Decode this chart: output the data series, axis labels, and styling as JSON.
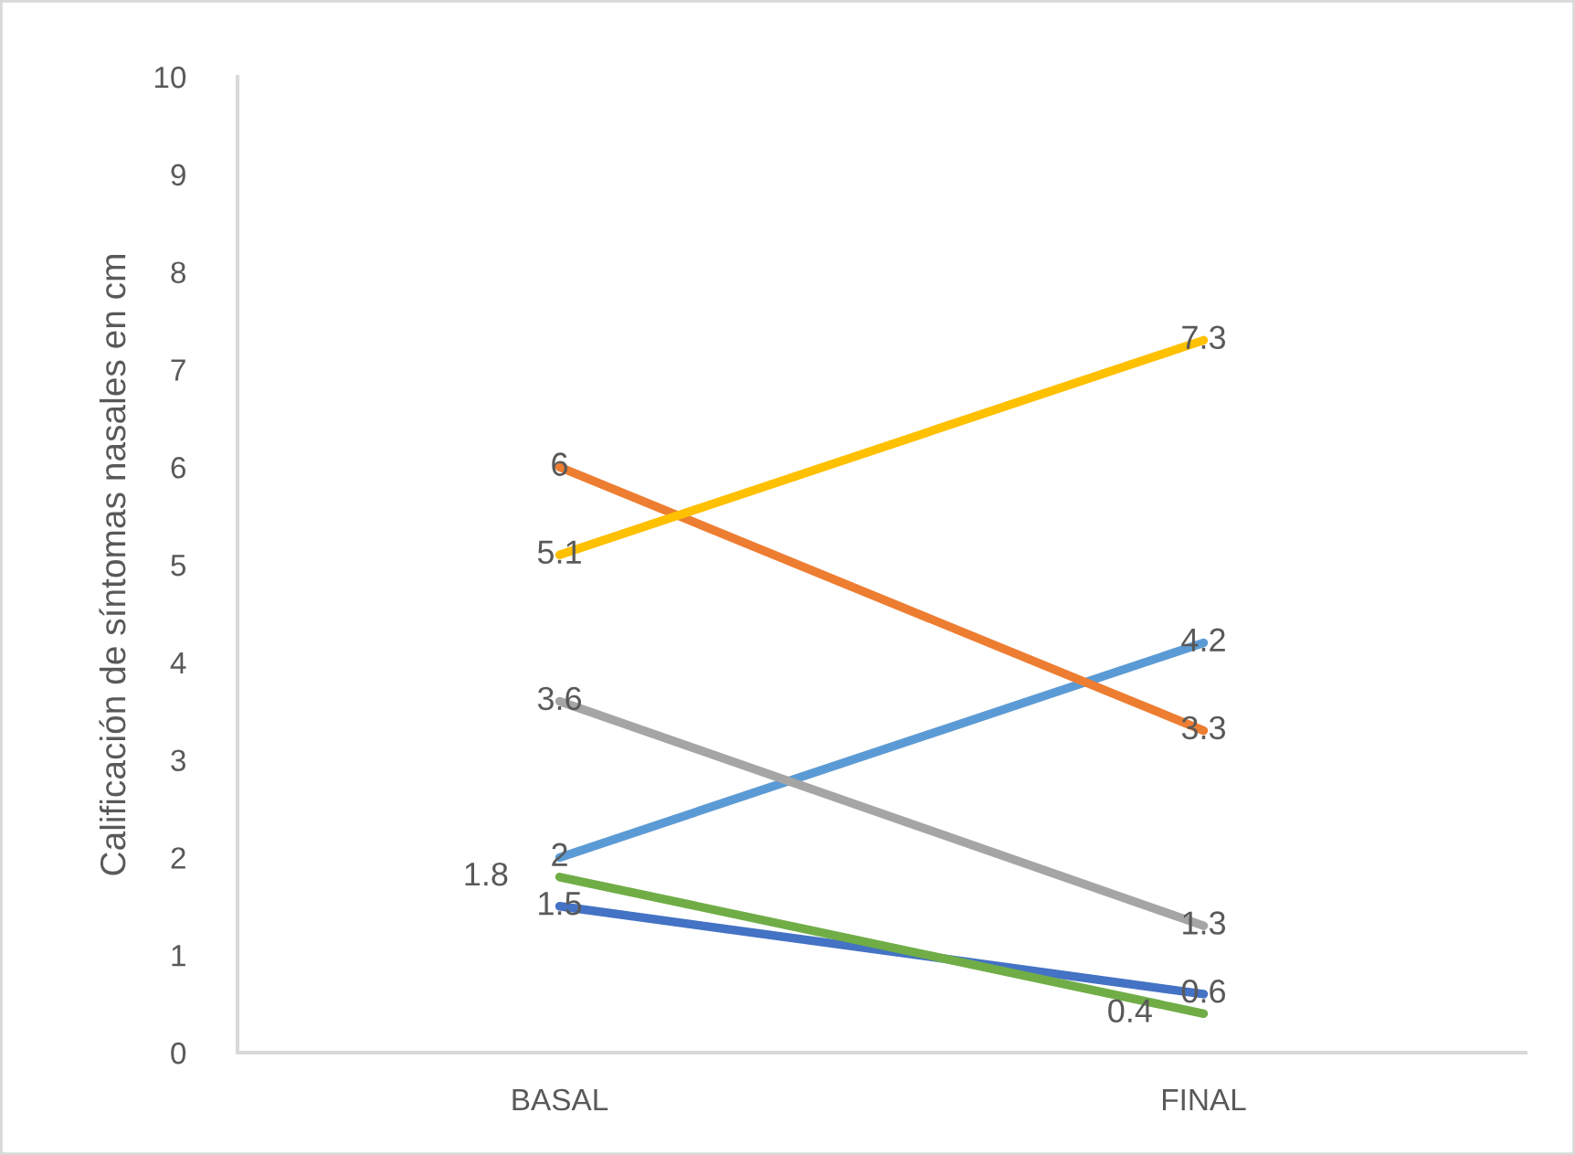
{
  "chart_data": {
    "type": "line",
    "ylabel": "Calificación de síntomas nasales en cm",
    "categories": [
      "BASAL",
      "FINAL"
    ],
    "series": [
      {
        "color": "#5b9bd5",
        "values": [
          2,
          4.2
        ]
      },
      {
        "color": "#ed7d31",
        "values": [
          6,
          3.3
        ]
      },
      {
        "color": "#a5a5a5",
        "values": [
          3.6,
          1.3
        ]
      },
      {
        "color": "#ffc000",
        "values": [
          5.1,
          7.3
        ]
      },
      {
        "color": "#4472c4",
        "values": [
          1.5,
          0.6
        ]
      },
      {
        "color": "#70ad47",
        "values": [
          1.8,
          0.4
        ]
      }
    ],
    "ylim": [
      0,
      10
    ],
    "yticks": [
      0,
      1,
      2,
      3,
      4,
      5,
      6,
      7,
      8,
      9,
      10
    ],
    "data_labels": true
  }
}
